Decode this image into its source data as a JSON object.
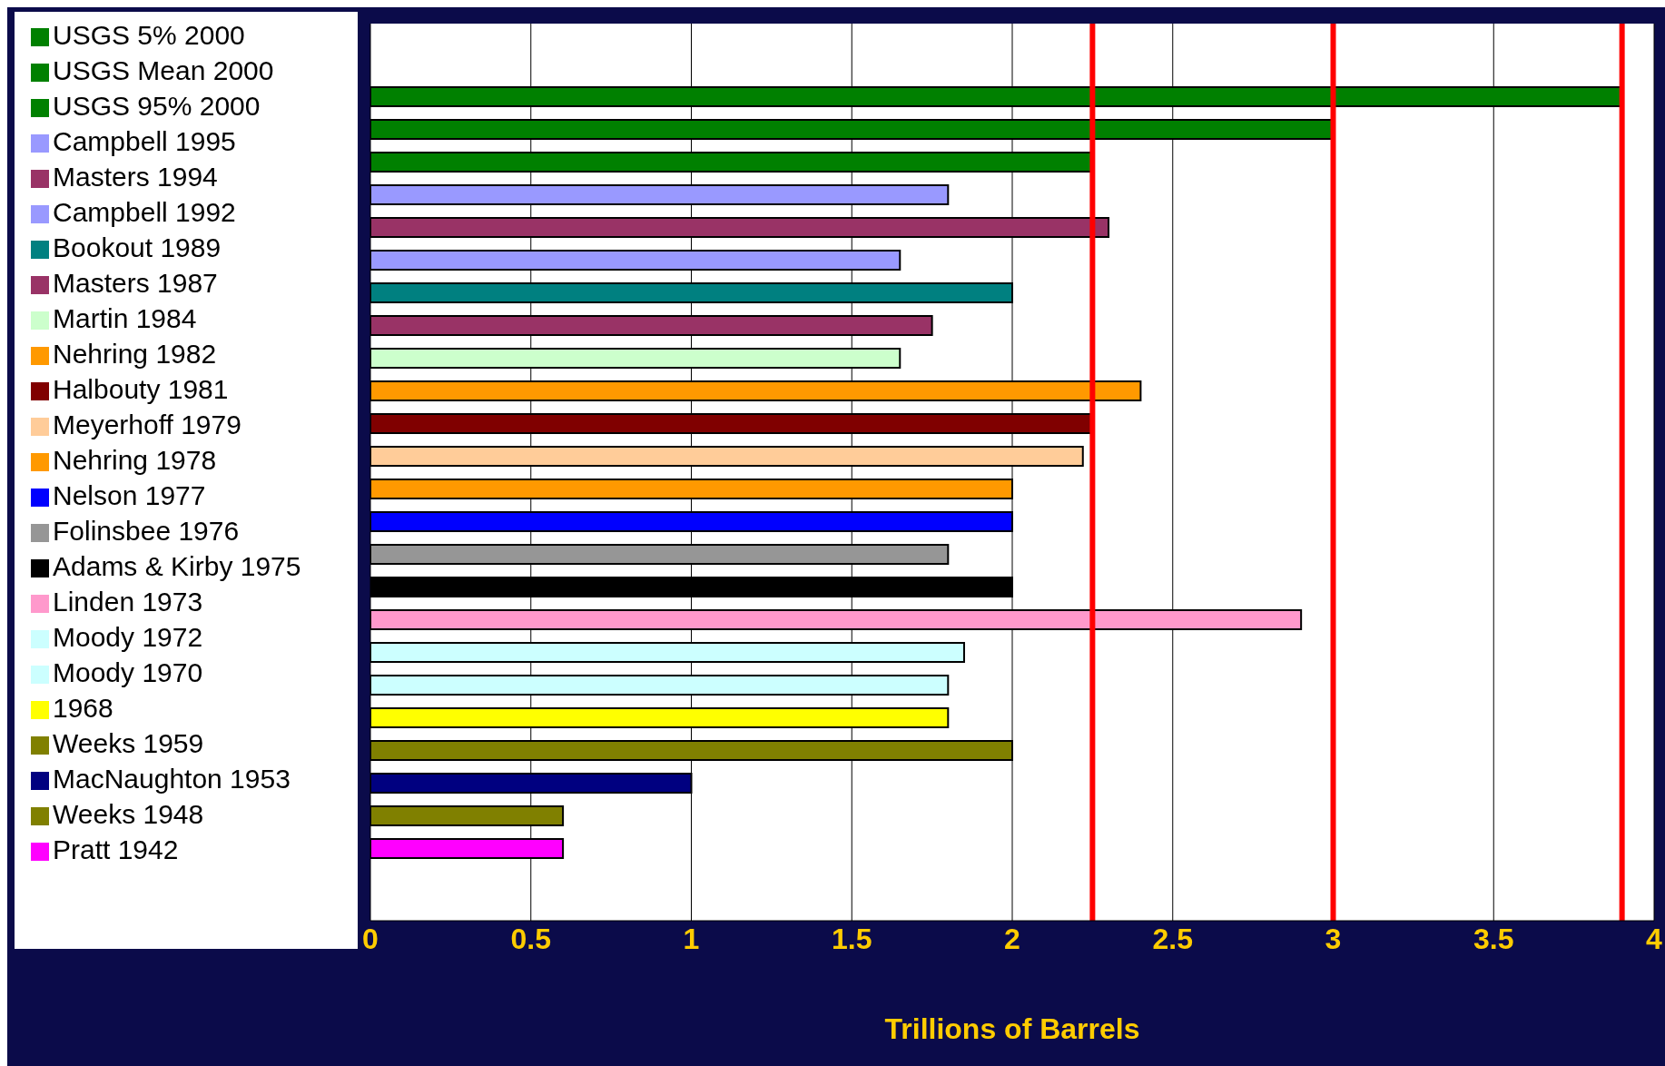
{
  "chart_data": {
    "type": "bar",
    "orientation": "horizontal",
    "xlabel": "Trillions of Barrels",
    "categories": [
      null
    ],
    "series": [
      {
        "name": "USGS 5% 2000",
        "color": "#008000",
        "values": [
          3.9
        ]
      },
      {
        "name": "USGS Mean 2000",
        "color": "#008000",
        "values": [
          3.0
        ]
      },
      {
        "name": "USGS 95% 2000",
        "color": "#008000",
        "values": [
          2.25
        ]
      },
      {
        "name": "Campbell 1995",
        "color": "#9999ff",
        "values": [
          1.8
        ]
      },
      {
        "name": "Masters 1994",
        "color": "#993366",
        "values": [
          2.3
        ]
      },
      {
        "name": "Campbell 1992",
        "color": "#9999ff",
        "values": [
          1.65
        ]
      },
      {
        "name": "Bookout 1989",
        "color": "#008080",
        "values": [
          2.0
        ]
      },
      {
        "name": "Masters 1987",
        "color": "#993366",
        "values": [
          1.75
        ]
      },
      {
        "name": "Martin 1984",
        "color": "#ccffcc",
        "values": [
          1.65
        ]
      },
      {
        "name": "Nehring 1982",
        "color": "#ff9900",
        "values": [
          2.4
        ]
      },
      {
        "name": "Halbouty 1981",
        "color": "#800000",
        "values": [
          2.25
        ]
      },
      {
        "name": "Meyerhoff 1979",
        "color": "#ffcc99",
        "values": [
          2.22
        ]
      },
      {
        "name": "Nehring 1978",
        "color": "#ff9900",
        "values": [
          2.0
        ]
      },
      {
        "name": "Nelson 1977",
        "color": "#0000ff",
        "values": [
          2.0
        ]
      },
      {
        "name": "Folinsbee 1976",
        "color": "#969696",
        "values": [
          1.8
        ]
      },
      {
        "name": "Adams & Kirby 1975",
        "color": "#000000",
        "values": [
          2.0
        ]
      },
      {
        "name": "Linden 1973",
        "color": "#ff99cc",
        "values": [
          2.9
        ]
      },
      {
        "name": "Moody 1972",
        "color": "#ccffff",
        "values": [
          1.85
        ]
      },
      {
        "name": "Moody 1970",
        "color": "#ccffff",
        "values": [
          1.8
        ]
      },
      {
        "name": "1968",
        "color": "#ffff00",
        "values": [
          1.8
        ]
      },
      {
        "name": "Weeks 1959",
        "color": "#808000",
        "values": [
          2.0
        ]
      },
      {
        "name": "MacNaughton 1953",
        "color": "#000080",
        "values": [
          1.0
        ]
      },
      {
        "name": "Weeks 1948",
        "color": "#808000",
        "values": [
          0.6
        ]
      },
      {
        "name": "Pratt 1942",
        "color": "#ff00ff",
        "values": [
          0.6
        ]
      }
    ],
    "xlim": [
      0,
      4
    ],
    "xticks": [
      0,
      0.5,
      1,
      1.5,
      2,
      2.5,
      3,
      3.5,
      4
    ],
    "grid": "x",
    "legend": "left",
    "ref_lines": [
      {
        "axis": "x",
        "value": 2.25,
        "color": "#ff0000"
      },
      {
        "axis": "x",
        "value": 3,
        "color": "#ff0000"
      },
      {
        "axis": "x",
        "value": 3.9,
        "color": "#ff0000"
      }
    ]
  }
}
